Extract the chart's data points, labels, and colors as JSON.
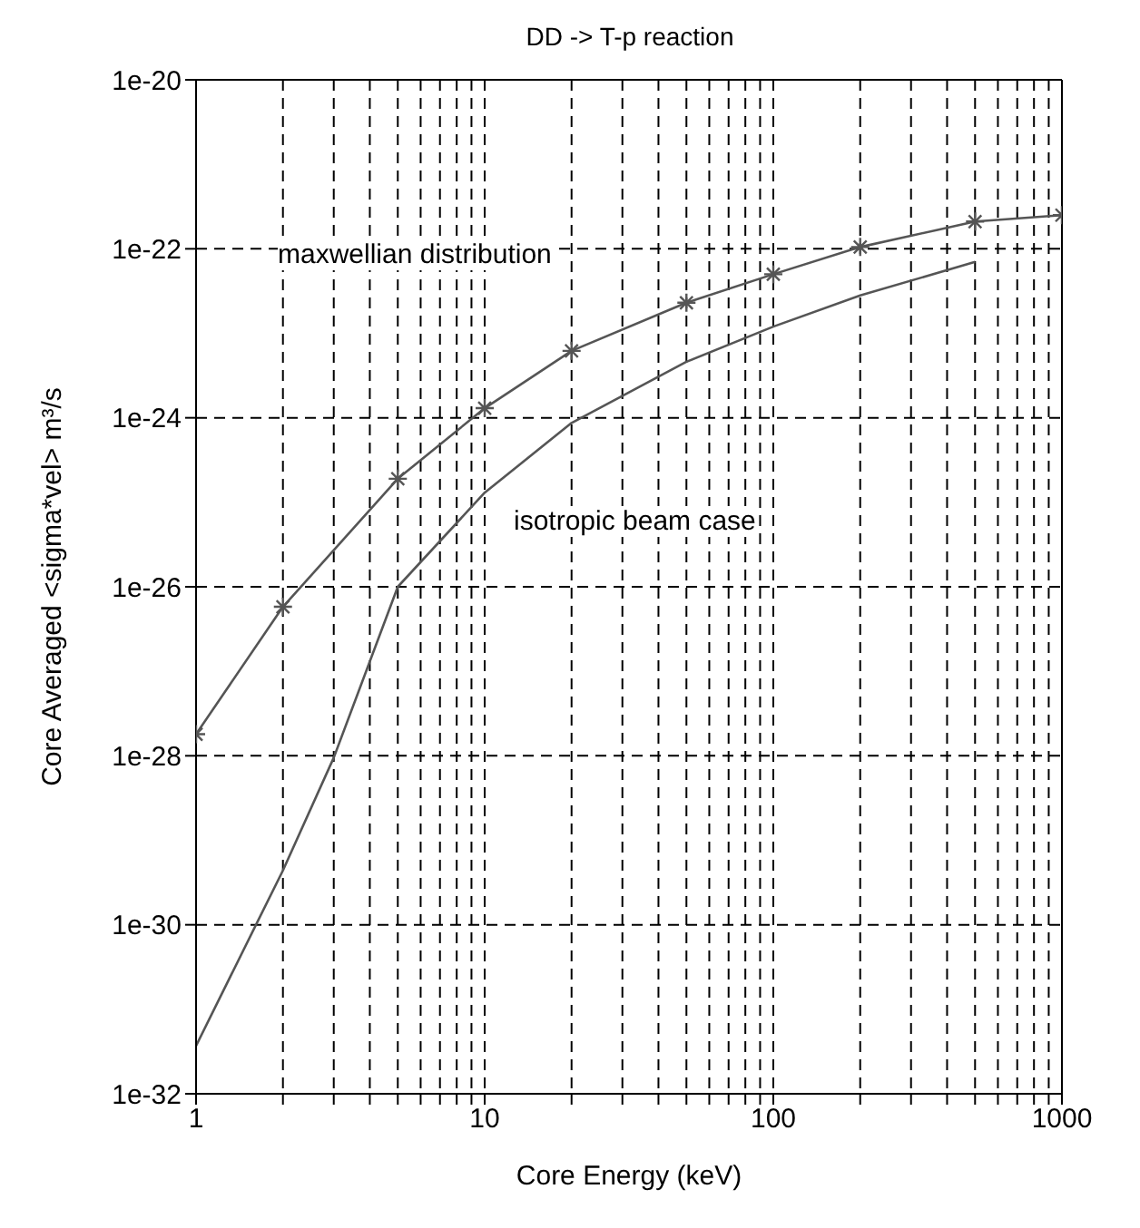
{
  "chart_data": {
    "type": "line",
    "title": "DD -> T-p reaction",
    "xlabel": "Core Energy (keV)",
    "ylabel": "Core Averaged <sigma*vel> m³/s",
    "log": "xy",
    "grid": true,
    "line_style": "solid",
    "xlim": [
      1,
      1000
    ],
    "ylim": [
      1e-32,
      1e-20
    ],
    "xticks": [
      1,
      {
        "value": 2,
        "label": null
      },
      {
        "value": 3,
        "label": null
      },
      {
        "value": 4,
        "label": null
      },
      {
        "value": 5,
        "label": null
      },
      {
        "value": 6,
        "label": null
      },
      {
        "value": 7,
        "label": null
      },
      {
        "value": 8,
        "label": null
      },
      {
        "value": 9,
        "label": null
      },
      10,
      {
        "value": 20,
        "label": null
      },
      {
        "value": 30,
        "label": null
      },
      {
        "value": 40,
        "label": null
      },
      {
        "value": 50,
        "label": null
      },
      {
        "value": 60,
        "label": null
      },
      {
        "value": 70,
        "label": null
      },
      {
        "value": 80,
        "label": null
      },
      {
        "value": 90,
        "label": null
      },
      100,
      {
        "value": 200,
        "label": null
      },
      {
        "value": 300,
        "label": null
      },
      {
        "value": 400,
        "label": null
      },
      {
        "value": 500,
        "label": null
      },
      {
        "value": 600,
        "label": null
      },
      {
        "value": 700,
        "label": null
      },
      {
        "value": 800,
        "label": null
      },
      {
        "value": 900,
        "label": null
      },
      1000
    ],
    "yticks": [
      {
        "value": 1e-32,
        "label": "1e-32"
      },
      {
        "value": 1e-30,
        "label": "1e-30"
      },
      {
        "value": 1e-28,
        "label": "1e-28"
      },
      {
        "value": 1e-26,
        "label": "1e-26"
      },
      {
        "value": 1e-24,
        "label": "1e-24"
      },
      {
        "value": 1e-22,
        "label": "1e-22"
      },
      {
        "value": 1e-20,
        "label": "1e-20"
      }
    ],
    "series": [
      {
        "color": "#555555",
        "marker": "cross",
        "x": [
          1,
          2,
          5,
          10,
          20,
          50,
          100,
          200,
          500,
          1000
        ],
        "values": [
          1.8e-28,
          5.8e-27,
          1.9e-25,
          1.3e-24,
          6.2e-24,
          2.3e-23,
          5e-23,
          1.05e-22,
          2.1e-22,
          2.5e-22
        ]
      },
      {
        "color": "#555555",
        "marker": "none",
        "x": [
          1,
          2,
          3,
          5,
          10,
          20,
          50,
          100,
          200,
          500
        ],
        "values": [
          3.7e-32,
          4.4e-30,
          9.5e-29,
          1e-26,
          1.3e-25,
          8.7e-25,
          4.6e-24,
          1.2e-23,
          2.8e-23,
          7e-23
        ]
      }
    ],
    "annotations": [
      "maxwellian distribution",
      "isotropic beam case"
    ]
  }
}
